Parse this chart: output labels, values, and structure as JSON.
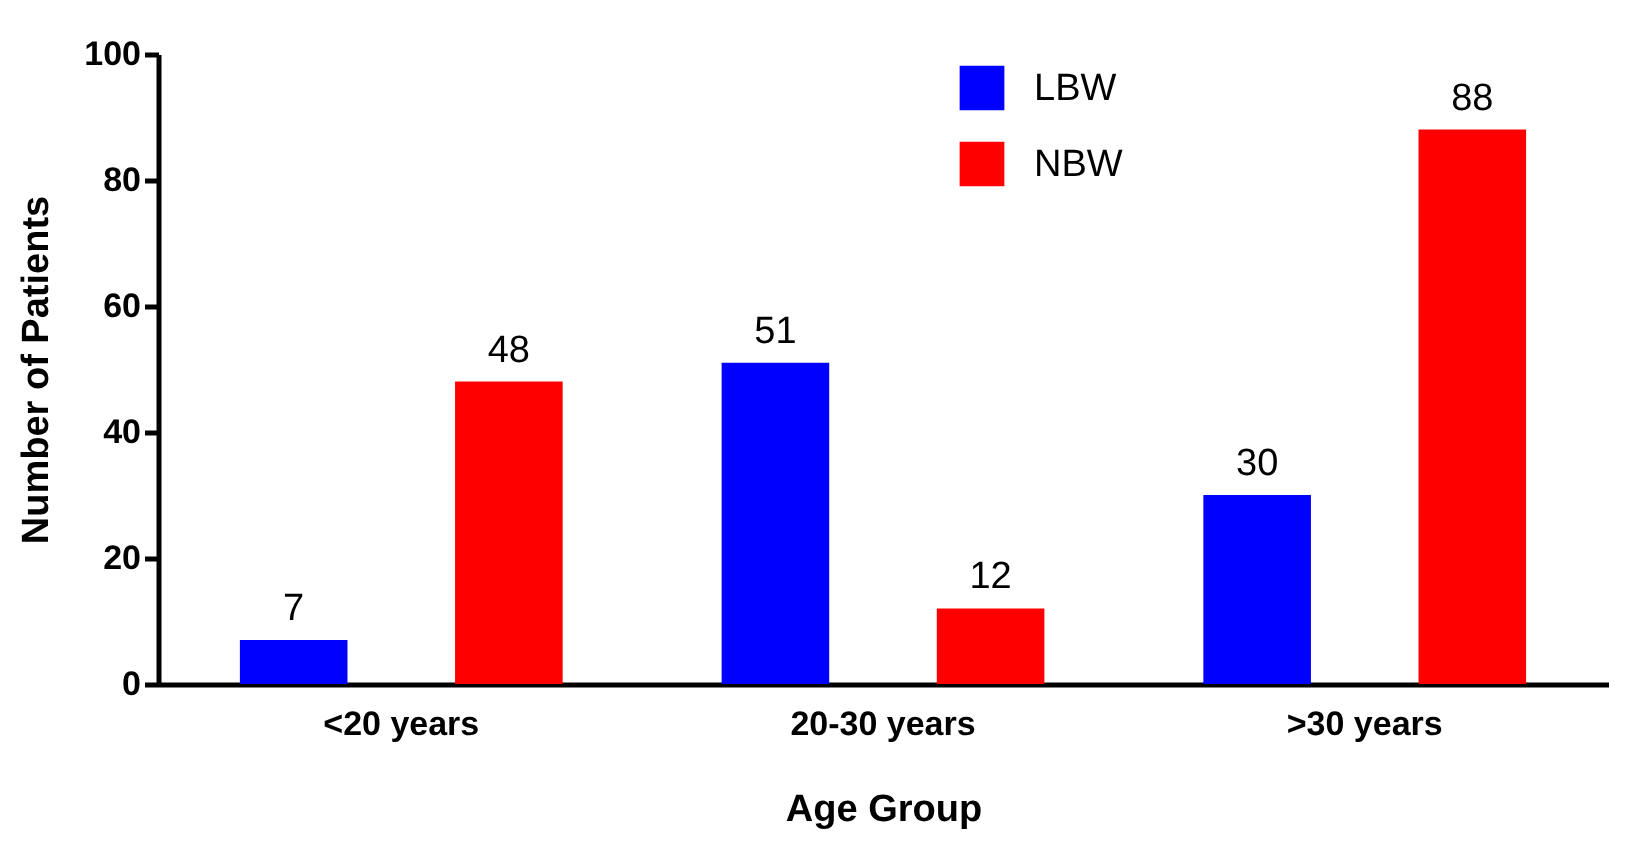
{
  "chart_data": {
    "type": "bar",
    "xlabel": "Age Group",
    "ylabel": "Number of Patients",
    "categories": [
      "<20 years",
      "20-30 years",
      ">30 years"
    ],
    "series": [
      {
        "name": "LBW",
        "color": "#0000ff",
        "values": [
          7,
          51,
          30
        ]
      },
      {
        "name": "NBW",
        "color": "#ff0000",
        "values": [
          48,
          12,
          88
        ]
      }
    ],
    "ylim": [
      0,
      100
    ],
    "yticks": [
      0,
      20,
      40,
      60,
      80,
      100
    ],
    "grid": false,
    "legend": "top right",
    "data_labels": true
  }
}
